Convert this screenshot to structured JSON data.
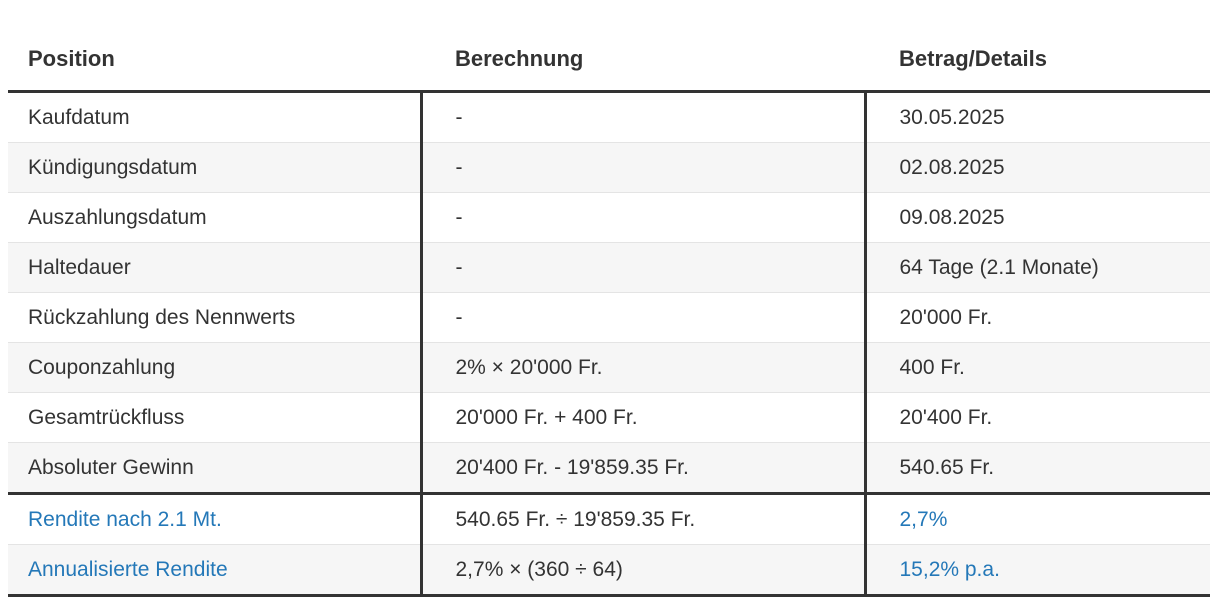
{
  "colors": {
    "text": "#333333",
    "strong_border": "#333333",
    "divider": "#e4e4e4",
    "row_stripe": "#f6f6f6",
    "highlight_text": "#2478b8"
  },
  "table": {
    "columns": [
      {
        "label": "Position"
      },
      {
        "label": "Berechnung"
      },
      {
        "label": "Betrag/Details"
      }
    ],
    "rows": [
      {
        "position": "Kaufdatum",
        "calculation": "-",
        "amount": "30.05.2025",
        "highlighted": false
      },
      {
        "position": "Kündigungsdatum",
        "calculation": "-",
        "amount": "02.08.2025",
        "highlighted": false
      },
      {
        "position": "Auszahlungsdatum",
        "calculation": "-",
        "amount": "09.08.2025",
        "highlighted": false
      },
      {
        "position": "Haltedauer",
        "calculation": "-",
        "amount": "64 Tage (2.1 Monate)",
        "highlighted": false
      },
      {
        "position": "Rückzahlung des Nennwerts",
        "calculation": "-",
        "amount": "20'000 Fr.",
        "highlighted": false
      },
      {
        "position": "Couponzahlung",
        "calculation": "2% × 20'000 Fr.",
        "amount": "400 Fr.",
        "highlighted": false
      },
      {
        "position": "Gesamtrückfluss",
        "calculation": "20'000 Fr. + 400 Fr.",
        "amount": "20'400 Fr.",
        "highlighted": false
      },
      {
        "position": "Absoluter Gewinn",
        "calculation": "20'400 Fr. - 19'859.35 Fr.",
        "amount": "540.65 Fr.",
        "highlighted": false
      },
      {
        "position": "Rendite nach 2.1 Mt.",
        "calculation": "540.65 Fr. ÷ 19'859.35 Fr.",
        "amount": "2,7%",
        "highlighted": true
      },
      {
        "position": "Annualisierte Rendite",
        "calculation": "2,7% × (360 ÷ 64)",
        "amount": "15,2% p.a.",
        "highlighted": true
      }
    ]
  }
}
